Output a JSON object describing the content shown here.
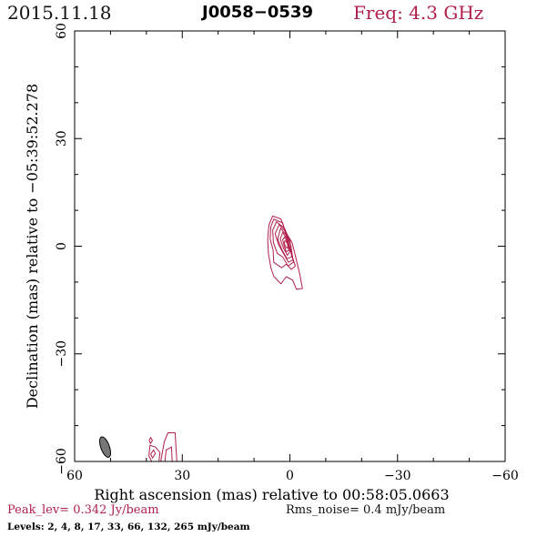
{
  "header": {
    "date": "2015.11.18",
    "source": "J0058−0539",
    "freq": "Freq:  4.3  GHz"
  },
  "chart_data": {
    "type": "contour",
    "xlabel": "Right ascension (mas) relative to 00:58:05.0663",
    "ylabel": "Declination (mas) relative to −05:39:52.278",
    "xlim": [
      60,
      -60
    ],
    "ylim": [
      -60,
      60
    ],
    "xticks": [
      60,
      30,
      0,
      -30,
      -60
    ],
    "yticks": [
      60,
      30,
      0,
      -30,
      -60
    ],
    "xtick_labels": [
      "60",
      "30",
      "0",
      "−30",
      "−60"
    ],
    "ytick_labels": [
      "60",
      "30",
      "0",
      "−30",
      "−60"
    ],
    "contour_color": "#b0204a",
    "beam": {
      "x": 51.5,
      "y": -56,
      "major": 6.0,
      "minor": 2.4,
      "angle_deg": -20,
      "color": "#777777"
    },
    "contours": [
      {
        "level": 2,
        "points": [
          [
            4.8,
            8.4
          ],
          [
            2.5,
            7.6
          ],
          [
            1.2,
            4.0
          ],
          [
            -0.6,
            1.0
          ],
          [
            -1.5,
            -2.5
          ],
          [
            -2.8,
            -8.0
          ],
          [
            -3.5,
            -11.8
          ],
          [
            -1.8,
            -12.0
          ],
          [
            -0.8,
            -9.5
          ],
          [
            1.0,
            -8.5
          ],
          [
            2.5,
            -10.5
          ],
          [
            4.5,
            -8.4
          ],
          [
            5.3,
            -6.0
          ],
          [
            6.0,
            -2.0
          ],
          [
            6.2,
            2.0
          ],
          [
            5.8,
            6.0
          ]
        ]
      },
      {
        "level": 4,
        "points": [
          [
            4.5,
            7.5
          ],
          [
            2.0,
            6.5
          ],
          [
            0.8,
            2.0
          ],
          [
            -0.4,
            -2.0
          ],
          [
            -1.5,
            -5.5
          ],
          [
            -0.4,
            -6.5
          ],
          [
            1.0,
            -5.0
          ],
          [
            2.3,
            -6.0
          ],
          [
            4.5,
            -4.5
          ],
          [
            4.7,
            -1.0
          ],
          [
            5.5,
            2.0
          ],
          [
            5.3,
            5.5
          ]
        ]
      },
      {
        "level": 8,
        "points": [
          [
            3.7,
            6.8
          ],
          [
            1.5,
            5.0
          ],
          [
            0.0,
            1.5
          ],
          [
            -1.0,
            -4.5
          ],
          [
            0.5,
            -5.5
          ],
          [
            2.0,
            -3.0
          ],
          [
            3.5,
            -2.0
          ],
          [
            4.6,
            1.0
          ],
          [
            4.8,
            4.5
          ]
        ]
      },
      {
        "level": 17,
        "points": [
          [
            3.0,
            6.0
          ],
          [
            1.2,
            4.0
          ],
          [
            -0.3,
            0.0
          ],
          [
            -0.8,
            -3.8
          ],
          [
            0.4,
            -4.5
          ],
          [
            1.8,
            -2.0
          ],
          [
            3.2,
            0.5
          ],
          [
            4.1,
            3.5
          ]
        ]
      },
      {
        "level": 33,
        "points": [
          [
            2.6,
            5.0
          ],
          [
            1.0,
            3.0
          ],
          [
            -0.2,
            -1.0
          ],
          [
            -0.5,
            -3.0
          ],
          [
            0.8,
            -3.5
          ],
          [
            2.2,
            -1.0
          ],
          [
            3.4,
            2.0
          ]
        ]
      },
      {
        "level": 66,
        "points": [
          [
            2.0,
            3.8
          ],
          [
            0.8,
            2.0
          ],
          [
            0.0,
            -1.5
          ],
          [
            0.7,
            -2.5
          ],
          [
            1.8,
            -0.5
          ],
          [
            2.7,
            2.0
          ]
        ]
      },
      {
        "level": 132,
        "points": [
          [
            1.5,
            2.5
          ],
          [
            0.6,
            1.0
          ],
          [
            0.3,
            -1.2
          ],
          [
            1.0,
            -1.5
          ],
          [
            1.6,
            0.0
          ],
          [
            2.0,
            1.8
          ]
        ]
      },
      {
        "level": 265,
        "points": [
          [
            1.2,
            1.5
          ],
          [
            0.6,
            0.5
          ],
          [
            0.6,
            -0.5
          ],
          [
            1.1,
            -0.4
          ],
          [
            1.5,
            0.6
          ],
          [
            1.5,
            1.4
          ]
        ]
      },
      {
        "level": 2,
        "points": [
          [
            35.0,
            -54.5
          ],
          [
            34.0,
            -52.0
          ],
          [
            32.0,
            -52.0
          ],
          [
            31.5,
            -60.0
          ],
          [
            32.8,
            -60.0
          ],
          [
            33.0,
            -56.0
          ],
          [
            34.5,
            -56.8
          ],
          [
            34.8,
            -60.0
          ],
          [
            36.0,
            -60.0
          ]
        ]
      },
      {
        "level": 2,
        "points": [
          [
            36.5,
            -60.0
          ],
          [
            36.2,
            -57.5
          ],
          [
            37.5,
            -56.0
          ],
          [
            39.0,
            -55.5
          ],
          [
            39.3,
            -58.5
          ],
          [
            38.5,
            -60.0
          ]
        ]
      },
      {
        "level": 2,
        "points": [
          [
            38.0,
            -56.8
          ],
          [
            37.5,
            -57.8
          ],
          [
            38.3,
            -59.0
          ],
          [
            38.8,
            -58.0
          ]
        ]
      },
      {
        "level": 2,
        "points": [
          [
            38.8,
            -53.3
          ],
          [
            38.3,
            -54.2
          ],
          [
            38.9,
            -55.0
          ],
          [
            39.2,
            -54.0
          ]
        ]
      }
    ]
  },
  "footer": {
    "peak": "Peak_lev=  0.342 Jy/beam",
    "rms": "Rms_noise=   0.4 mJy/beam",
    "levels": "Levels:    2,    4,    8,    17,    33,    66,   132,   265  mJy/beam"
  }
}
